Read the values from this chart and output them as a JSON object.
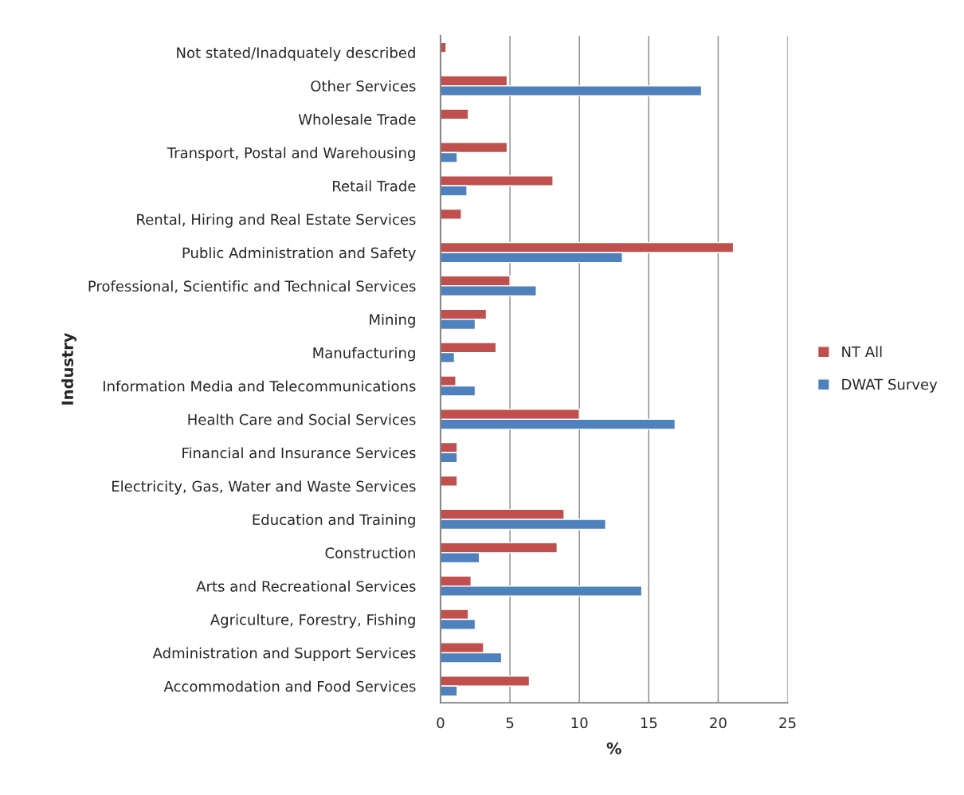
{
  "chart_data": {
    "type": "bar",
    "orientation": "horizontal",
    "categories": [
      "Not stated/Inadquately described",
      "Other Services",
      "Wholesale Trade",
      "Transport, Postal and Warehousing",
      "Retail Trade",
      "Rental, Hiring and Real Estate Services",
      "Public Administration and Safety",
      "Professional, Scientific and Technical Services",
      "Mining",
      "Manufacturing",
      "Information Media and Telecommunications",
      "Health Care and Social Services",
      "Financial and Insurance Services",
      "Electricity, Gas, Water and Waste Services",
      "Education and Training",
      "Construction",
      "Arts and Recreational Services",
      "Agriculture, Forestry, Fishing",
      "Administration and Support Services",
      "Accommodation and Food Services"
    ],
    "series": [
      {
        "name": "NT All",
        "color": "#c0504d",
        "values": [
          0.4,
          4.8,
          2.0,
          4.8,
          8.1,
          1.5,
          21.1,
          5.0,
          3.3,
          4.0,
          1.1,
          10.0,
          1.2,
          1.2,
          8.9,
          8.4,
          2.2,
          2.0,
          3.1,
          6.4
        ]
      },
      {
        "name": "DWAT Survey",
        "color": "#4f81bd",
        "values": [
          null,
          18.8,
          null,
          1.2,
          1.9,
          null,
          13.1,
          6.9,
          2.5,
          1.0,
          2.5,
          16.9,
          1.2,
          null,
          11.9,
          2.8,
          14.5,
          2.5,
          4.4,
          1.2
        ]
      }
    ],
    "xlabel": "%",
    "ylabel": "Industry",
    "xlim": [
      0,
      25
    ],
    "xticks": [
      0,
      5,
      10,
      15,
      20,
      25
    ],
    "grid": "x",
    "legend": "right"
  }
}
